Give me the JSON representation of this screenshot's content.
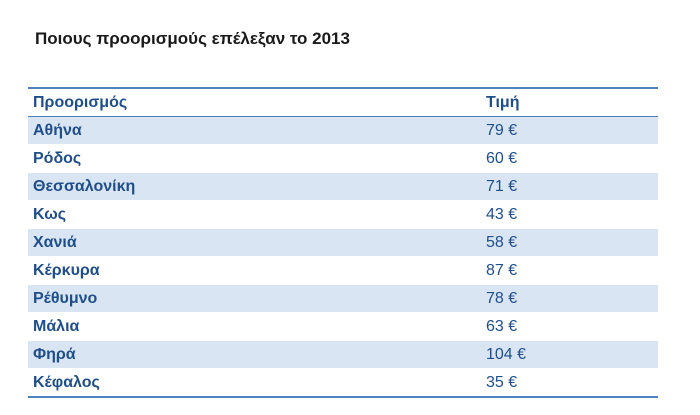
{
  "document": {
    "title": "Ποιους προορισμούς επέλεξαν το 2013"
  },
  "table": {
    "headers": {
      "destination": "Προορισμός",
      "price": "Τιμή"
    },
    "rows": [
      {
        "destination": "Αθήνα",
        "price": "79 €"
      },
      {
        "destination": "Ρόδος",
        "price": "60 €"
      },
      {
        "destination": "Θεσσαλονίκη",
        "price": "71 €"
      },
      {
        "destination": "Κως",
        "price": "43 €"
      },
      {
        "destination": "Χανιά",
        "price": "58 €"
      },
      {
        "destination": "Κέρκυρα",
        "price": "87 €"
      },
      {
        "destination": "Ρέθυμνο",
        "price": "78 €"
      },
      {
        "destination": "Μάλια",
        "price": "63 €"
      },
      {
        "destination": "Φηρά",
        "price": "104 €"
      },
      {
        "destination": "Κέφαλος",
        "price": "35 €"
      }
    ]
  },
  "colors": {
    "header_text": "#1f4e8c",
    "row_shade": "#d9e5f3",
    "rule": "#4f81bd"
  }
}
